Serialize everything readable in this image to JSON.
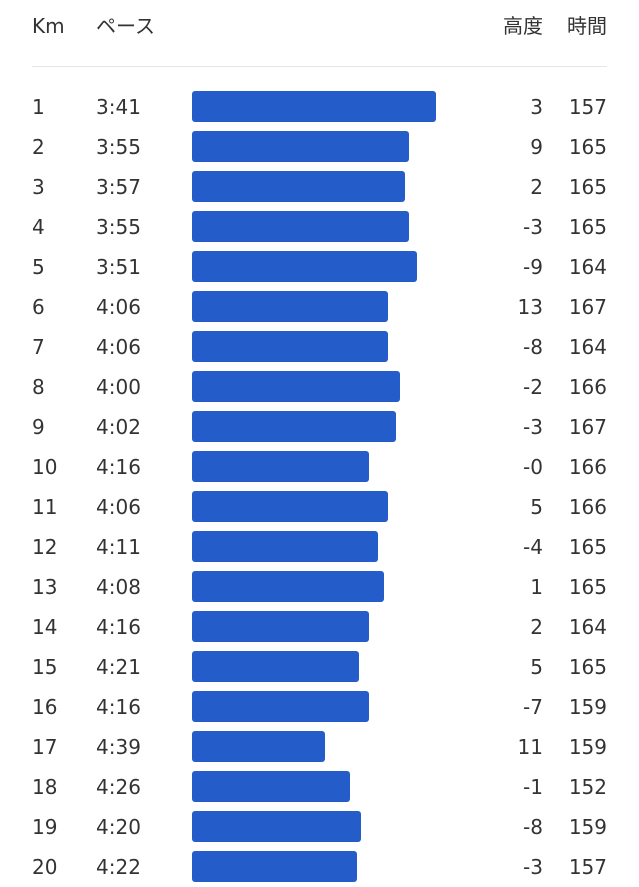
{
  "header": {
    "km": "Km",
    "pace": "ペース",
    "elevation": "高度",
    "time": "時間"
  },
  "colors": {
    "bar": "#245dc9",
    "text": "#333333",
    "divider": "#e6e6e6"
  },
  "splits": [
    {
      "km": "1",
      "pace": "3:41",
      "elev": "3",
      "time": "157"
    },
    {
      "km": "2",
      "pace": "3:55",
      "elev": "9",
      "time": "165"
    },
    {
      "km": "3",
      "pace": "3:57",
      "elev": "2",
      "time": "165"
    },
    {
      "km": "4",
      "pace": "3:55",
      "elev": "-3",
      "time": "165"
    },
    {
      "km": "5",
      "pace": "3:51",
      "elev": "-9",
      "time": "164"
    },
    {
      "km": "6",
      "pace": "4:06",
      "elev": "13",
      "time": "167"
    },
    {
      "km": "7",
      "pace": "4:06",
      "elev": "-8",
      "time": "164"
    },
    {
      "km": "8",
      "pace": "4:00",
      "elev": "-2",
      "time": "166"
    },
    {
      "km": "9",
      "pace": "4:02",
      "elev": "-3",
      "time": "167"
    },
    {
      "km": "10",
      "pace": "4:16",
      "elev": "-0",
      "time": "166"
    },
    {
      "km": "11",
      "pace": "4:06",
      "elev": "5",
      "time": "166"
    },
    {
      "km": "12",
      "pace": "4:11",
      "elev": "-4",
      "time": "165"
    },
    {
      "km": "13",
      "pace": "4:08",
      "elev": "1",
      "time": "165"
    },
    {
      "km": "14",
      "pace": "4:16",
      "elev": "2",
      "time": "164"
    },
    {
      "km": "15",
      "pace": "4:21",
      "elev": "5",
      "time": "165"
    },
    {
      "km": "16",
      "pace": "4:16",
      "elev": "-7",
      "time": "159"
    },
    {
      "km": "17",
      "pace": "4:39",
      "elev": "11",
      "time": "159"
    },
    {
      "km": "18",
      "pace": "4:26",
      "elev": "-1",
      "time": "152"
    },
    {
      "km": "19",
      "pace": "4:20",
      "elev": "-8",
      "time": "159"
    },
    {
      "km": "20",
      "pace": "4:22",
      "elev": "-3",
      "time": "157"
    }
  ]
}
